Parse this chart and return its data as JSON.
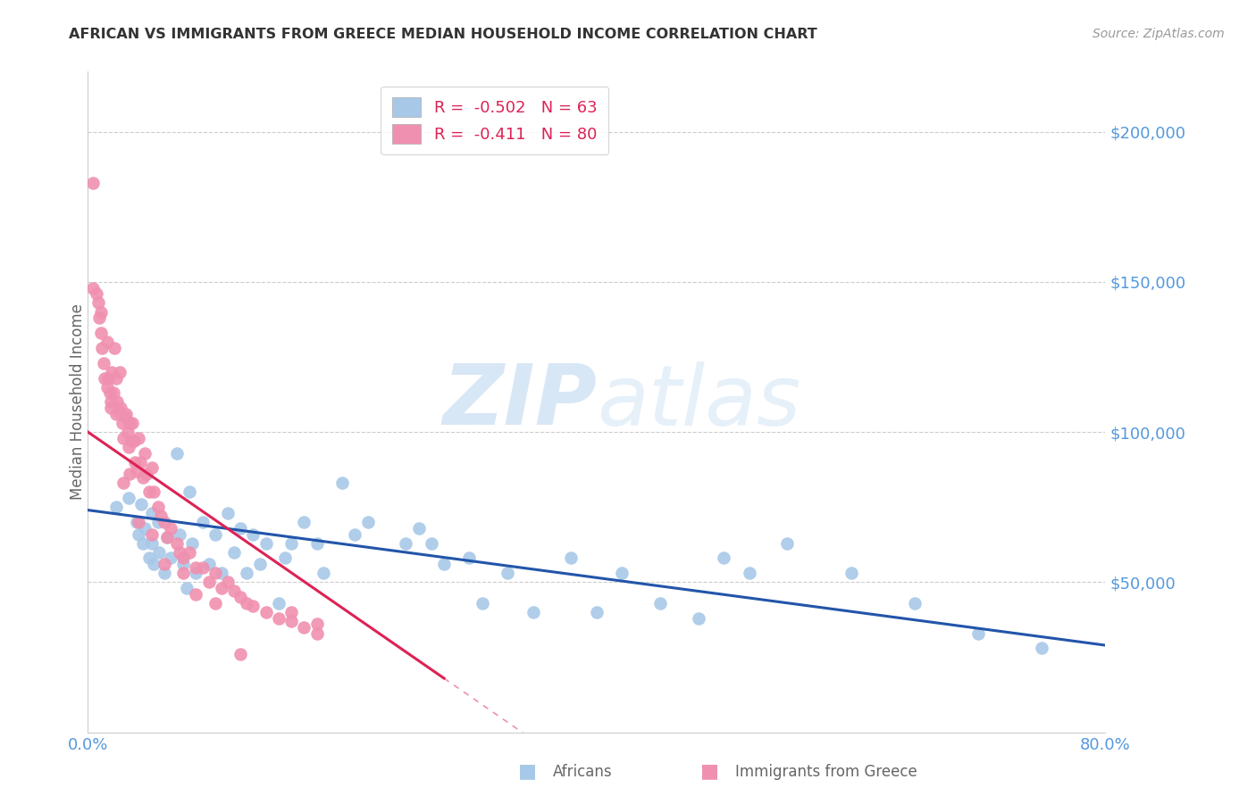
{
  "title": "AFRICAN VS IMMIGRANTS FROM GREECE MEDIAN HOUSEHOLD INCOME CORRELATION CHART",
  "source": "Source: ZipAtlas.com",
  "ylabel": "Median Household Income",
  "xlim": [
    0.0,
    0.8
  ],
  "ylim": [
    0,
    220000
  ],
  "africans_R": -0.502,
  "africans_N": 63,
  "greece_R": -0.411,
  "greece_N": 80,
  "scatter_blue_color": "#a8c8e8",
  "scatter_pink_color": "#f090b0",
  "line_blue_color": "#2255aa",
  "line_pink_color": "#dd2255",
  "ytick_color": "#5599dd",
  "xtick_color": "#5599dd",
  "grid_color": "#cccccc",
  "title_color": "#333333",
  "source_color": "#999999",
  "watermark_color": "#ccddf0",
  "ylabel_color": "#666666",
  "legend_text_color": "#dd2255",
  "bottom_label_color": "#666666",
  "africans_x": [
    0.022,
    0.032,
    0.038,
    0.04,
    0.042,
    0.043,
    0.045,
    0.048,
    0.05,
    0.05,
    0.052,
    0.055,
    0.056,
    0.06,
    0.062,
    0.065,
    0.07,
    0.072,
    0.075,
    0.078,
    0.08,
    0.082,
    0.085,
    0.09,
    0.095,
    0.1,
    0.105,
    0.11,
    0.115,
    0.12,
    0.125,
    0.13,
    0.135,
    0.14,
    0.15,
    0.155,
    0.16,
    0.17,
    0.18,
    0.185,
    0.2,
    0.21,
    0.22,
    0.25,
    0.26,
    0.27,
    0.28,
    0.3,
    0.31,
    0.33,
    0.35,
    0.38,
    0.4,
    0.42,
    0.45,
    0.48,
    0.5,
    0.52,
    0.55,
    0.6,
    0.65,
    0.7,
    0.75
  ],
  "africans_y": [
    75000,
    78000,
    70000,
    66000,
    76000,
    63000,
    68000,
    58000,
    73000,
    63000,
    56000,
    70000,
    60000,
    53000,
    65000,
    58000,
    93000,
    66000,
    56000,
    48000,
    80000,
    63000,
    53000,
    70000,
    56000,
    66000,
    53000,
    73000,
    60000,
    68000,
    53000,
    66000,
    56000,
    63000,
    43000,
    58000,
    63000,
    70000,
    63000,
    53000,
    83000,
    66000,
    70000,
    63000,
    68000,
    63000,
    56000,
    58000,
    43000,
    53000,
    40000,
    58000,
    40000,
    53000,
    43000,
    38000,
    58000,
    53000,
    63000,
    53000,
    43000,
    33000,
    28000
  ],
  "greece_x": [
    0.004,
    0.008,
    0.009,
    0.01,
    0.011,
    0.012,
    0.013,
    0.015,
    0.016,
    0.017,
    0.018,
    0.019,
    0.02,
    0.021,
    0.022,
    0.023,
    0.024,
    0.025,
    0.026,
    0.027,
    0.028,
    0.029,
    0.03,
    0.031,
    0.032,
    0.033,
    0.034,
    0.035,
    0.036,
    0.037,
    0.038,
    0.04,
    0.041,
    0.043,
    0.045,
    0.046,
    0.048,
    0.05,
    0.052,
    0.055,
    0.057,
    0.06,
    0.062,
    0.065,
    0.07,
    0.072,
    0.075,
    0.08,
    0.085,
    0.09,
    0.095,
    0.1,
    0.105,
    0.11,
    0.115,
    0.12,
    0.125,
    0.13,
    0.14,
    0.15,
    0.16,
    0.17,
    0.18,
    0.004,
    0.007,
    0.01,
    0.015,
    0.018,
    0.022,
    0.028,
    0.033,
    0.04,
    0.05,
    0.06,
    0.075,
    0.085,
    0.1,
    0.12,
    0.16,
    0.18
  ],
  "greece_y": [
    183000,
    143000,
    138000,
    133000,
    128000,
    123000,
    118000,
    130000,
    118000,
    113000,
    108000,
    120000,
    113000,
    128000,
    118000,
    110000,
    107000,
    120000,
    108000,
    103000,
    98000,
    105000,
    106000,
    100000,
    95000,
    103000,
    97000,
    103000,
    97000,
    90000,
    87000,
    98000,
    90000,
    85000,
    93000,
    86000,
    80000,
    88000,
    80000,
    75000,
    72000,
    70000,
    65000,
    68000,
    63000,
    60000,
    58000,
    60000,
    55000,
    55000,
    50000,
    53000,
    48000,
    50000,
    47000,
    45000,
    43000,
    42000,
    40000,
    38000,
    37000,
    35000,
    33000,
    148000,
    146000,
    140000,
    115000,
    110000,
    106000,
    83000,
    86000,
    70000,
    66000,
    56000,
    53000,
    46000,
    43000,
    26000,
    40000,
    36000
  ],
  "blue_trend_x0": 0.0,
  "blue_trend_x1": 0.8,
  "blue_trend_y0": 74000,
  "blue_trend_y1": 29000,
  "pink_trend_x0": 0.0,
  "pink_trend_x1": 0.28,
  "pink_trend_y0": 100000,
  "pink_trend_y1": 18000
}
